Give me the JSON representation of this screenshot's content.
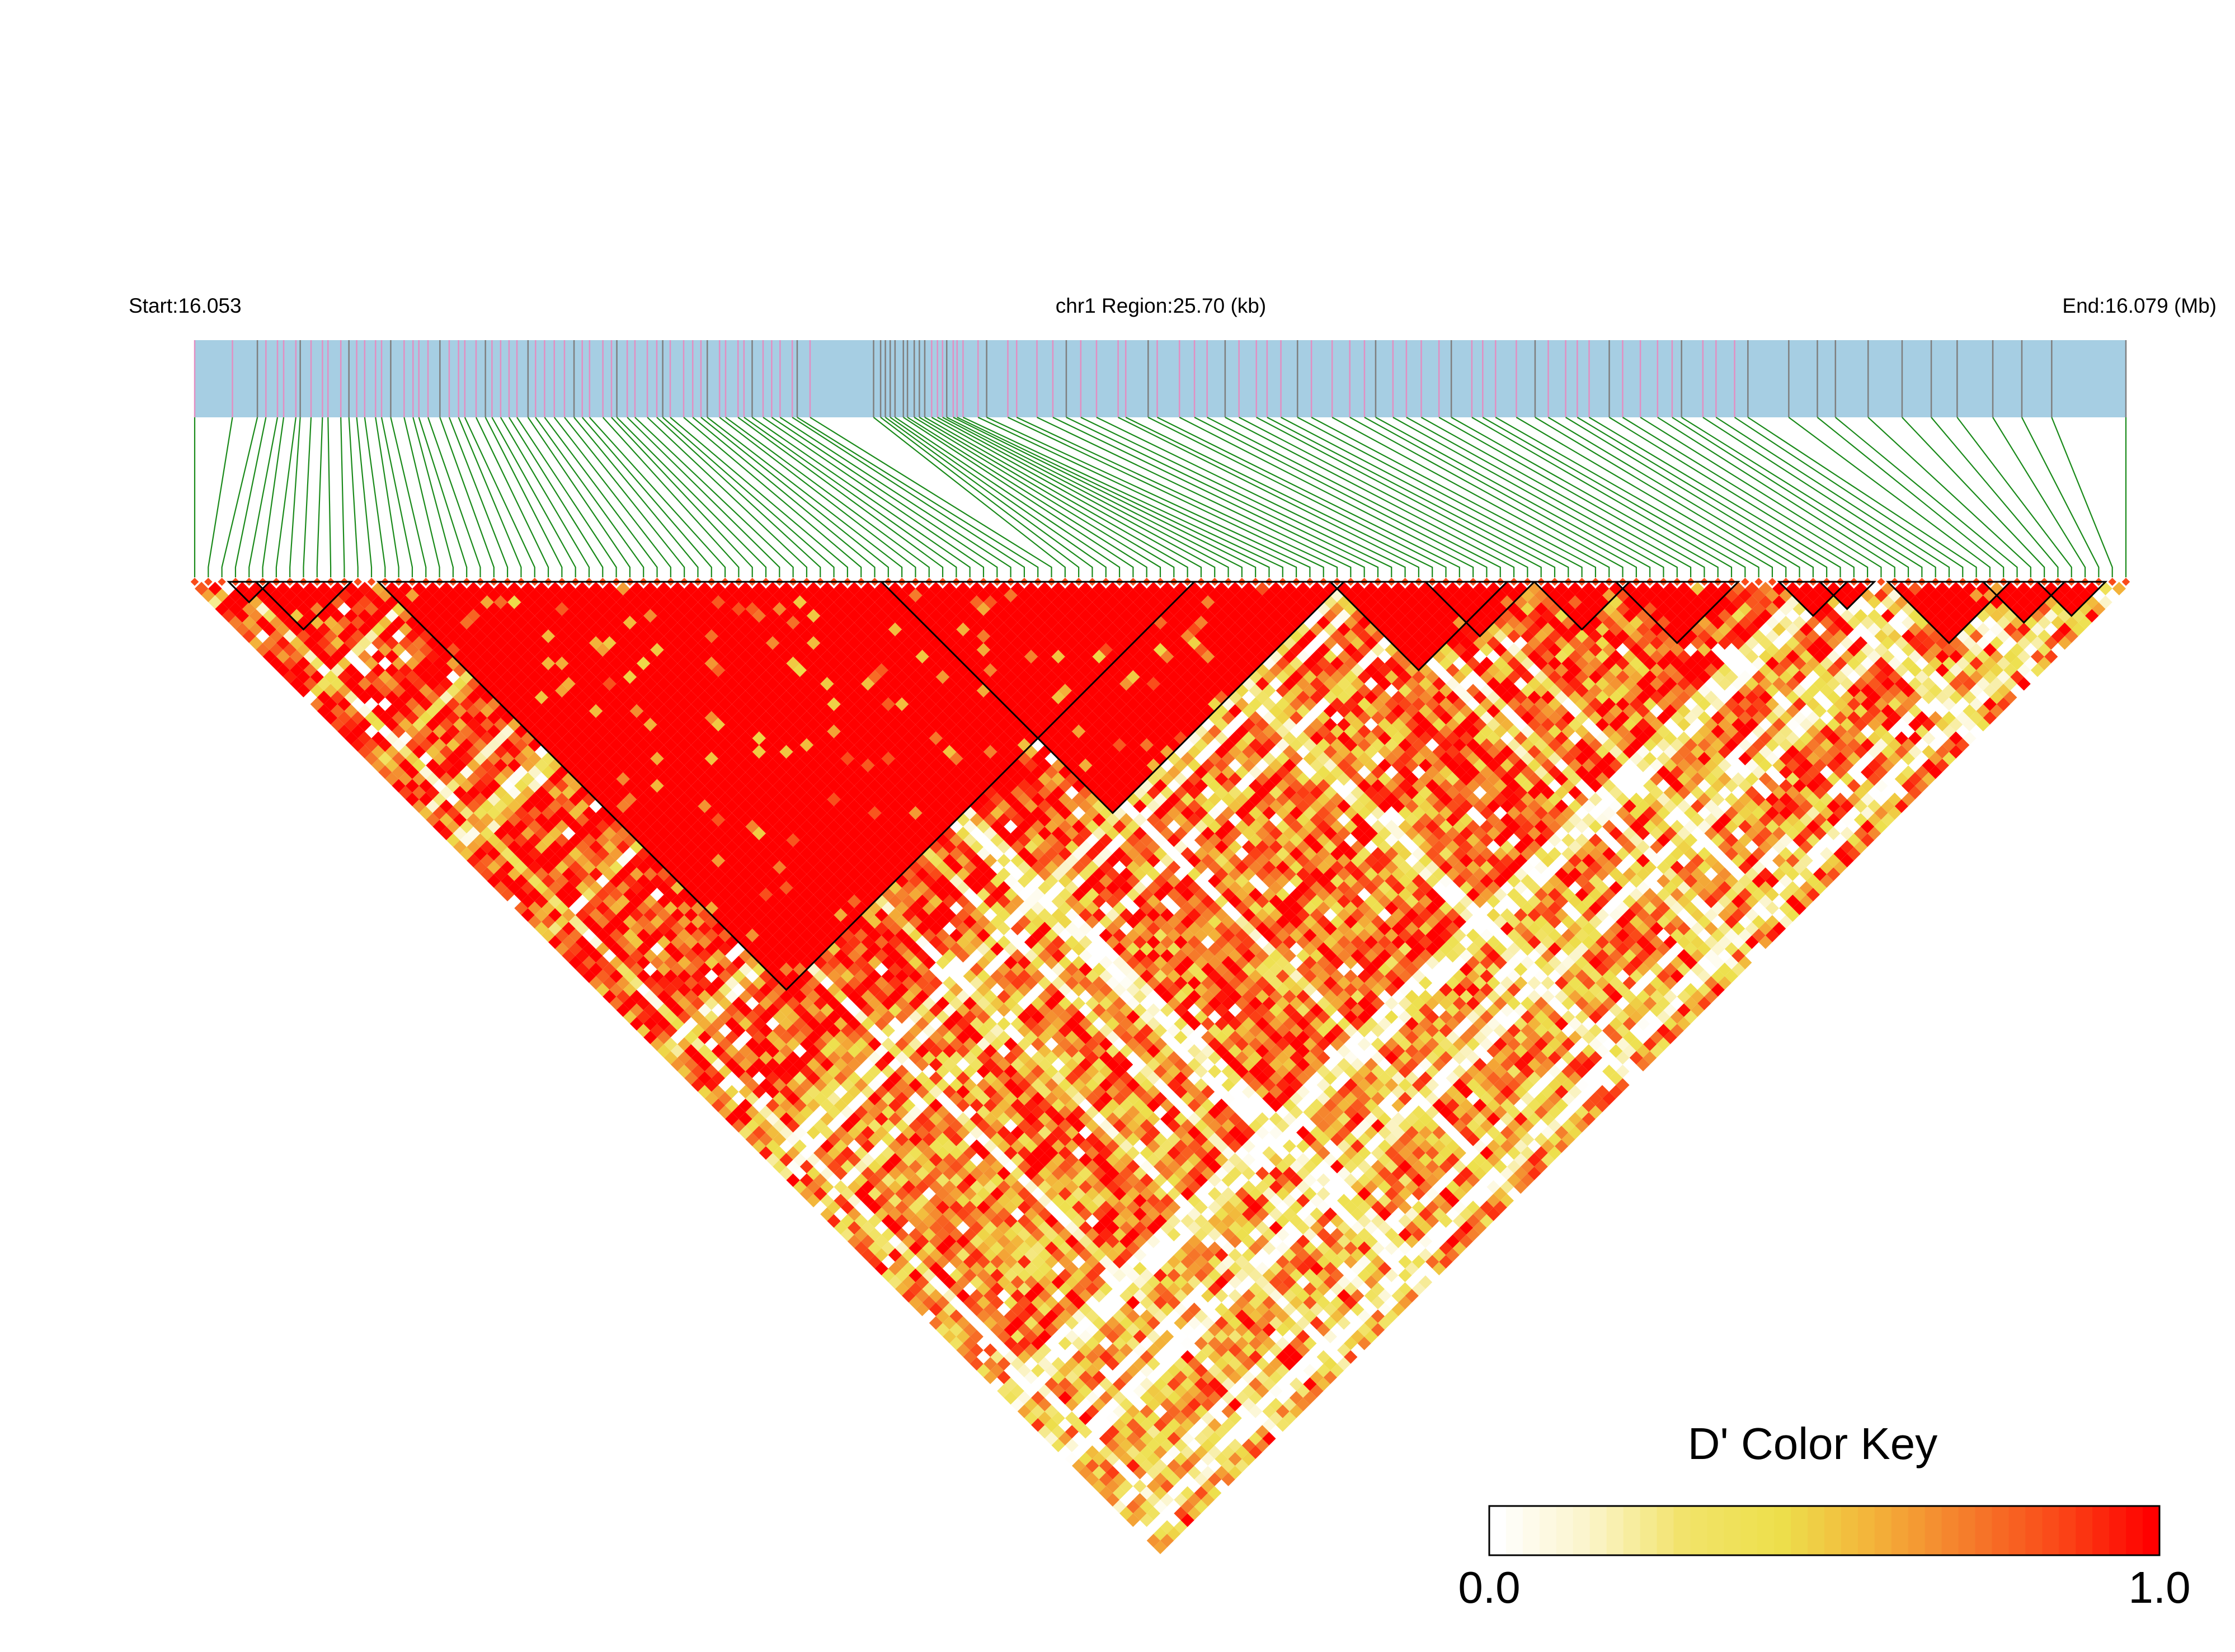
{
  "header": {
    "start_label": "Start:16.053",
    "region_label": "chr1 Region:25.70 (kb)",
    "end_label": "End:16.079 (Mb)"
  },
  "color_key": {
    "title": "D' Color Key",
    "min_label": "0.0",
    "max_label": "1.0",
    "stops": [
      "#FFFFFF",
      "#FBF4C8",
      "#F2E36A",
      "#EDE04C",
      "#F3B43A",
      "#F57E2C",
      "#FA4818",
      "#FF0000"
    ]
  },
  "colors": {
    "track_fill": "#A6CEE3",
    "snp_mark_pink": "#E28FC2",
    "snp_mark_gray": "#7F7F7F",
    "connector_line": "#1A8A1A",
    "block_outline": "#000000"
  },
  "chart_data": {
    "type": "heatmap",
    "description_of_values": "pairwise D' between SNPs, 0.0 to 1.0",
    "snp_count": 143,
    "region": {
      "chromosome": "chr1",
      "start_mb": 16.053,
      "end_mb": 16.079,
      "length_kb": 25.7
    },
    "value_range": [
      0.0,
      1.0
    ],
    "ld_blocks_snp_index_ranges": [
      [
        3,
        5
      ],
      [
        5,
        11
      ],
      [
        14,
        73
      ],
      [
        51,
        84
      ],
      [
        84,
        96
      ],
      [
        91,
        98
      ],
      [
        99,
        105
      ],
      [
        105,
        113
      ],
      [
        117,
        121
      ],
      [
        120,
        123
      ],
      [
        125,
        133
      ],
      [
        132,
        137
      ],
      [
        136,
        140
      ]
    ]
  }
}
